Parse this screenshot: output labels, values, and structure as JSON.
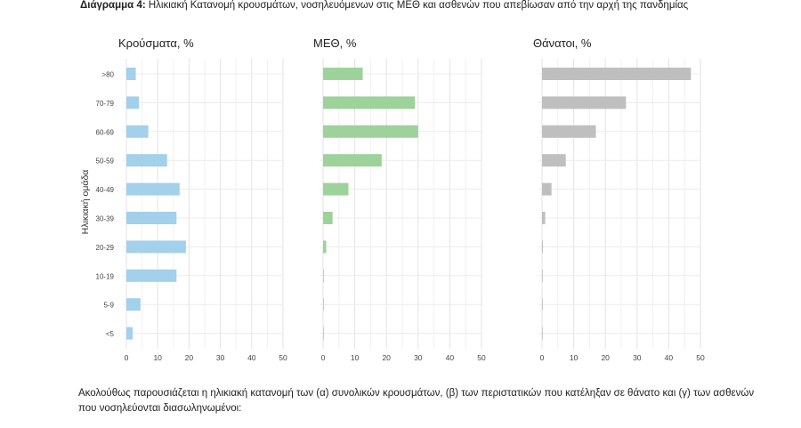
{
  "caption": {
    "label": "Διάγραμμα 4:",
    "text": "Ηλικιακή Κατανομή κρουσμάτων, νοσηλευόμενων στις ΜΕΘ και ασθενών που απεβίωσαν από την αρχή της πανδημίας"
  },
  "paragraph": "Ακολούθως παρουσιάζεται η ηλικιακή κατανομή των (α) συνολικών κρουσμάτων, (β) των περιστατικών που κατέληξαν σε θάνατο και (γ) των ασθενών που νοσηλεύονται διασωληνωμένοι:",
  "chart_data": {
    "type": "bar",
    "orientation": "horizontal",
    "ylabel": "Ηλικιακή ομάδα",
    "categories": [
      ">80",
      "70-79",
      "60-69",
      "50-59",
      "40-49",
      "30-39",
      "20-29",
      "10-19",
      "5-9",
      "<5"
    ],
    "xlim": [
      0,
      50
    ],
    "xticks": [
      "0",
      "10",
      "20",
      "30",
      "40",
      "50"
    ],
    "grid": true,
    "panels": [
      {
        "title": "Κρούσματα, %",
        "color": "#a3d0ea",
        "values": [
          3,
          4,
          7,
          13,
          17,
          16,
          19,
          16,
          4.5,
          2
        ]
      },
      {
        "title": "ΜΕΘ, %",
        "color": "#9dd29b",
        "values": [
          12.5,
          29,
          30,
          18.5,
          8,
          3,
          1,
          0.2,
          0.2,
          0.2
        ]
      },
      {
        "title": "Θάνατοι, %",
        "color": "#bfbfbf",
        "values": [
          47,
          26.5,
          17,
          7.5,
          3,
          1,
          0.3,
          0.2,
          0.1,
          0.1
        ]
      }
    ]
  }
}
